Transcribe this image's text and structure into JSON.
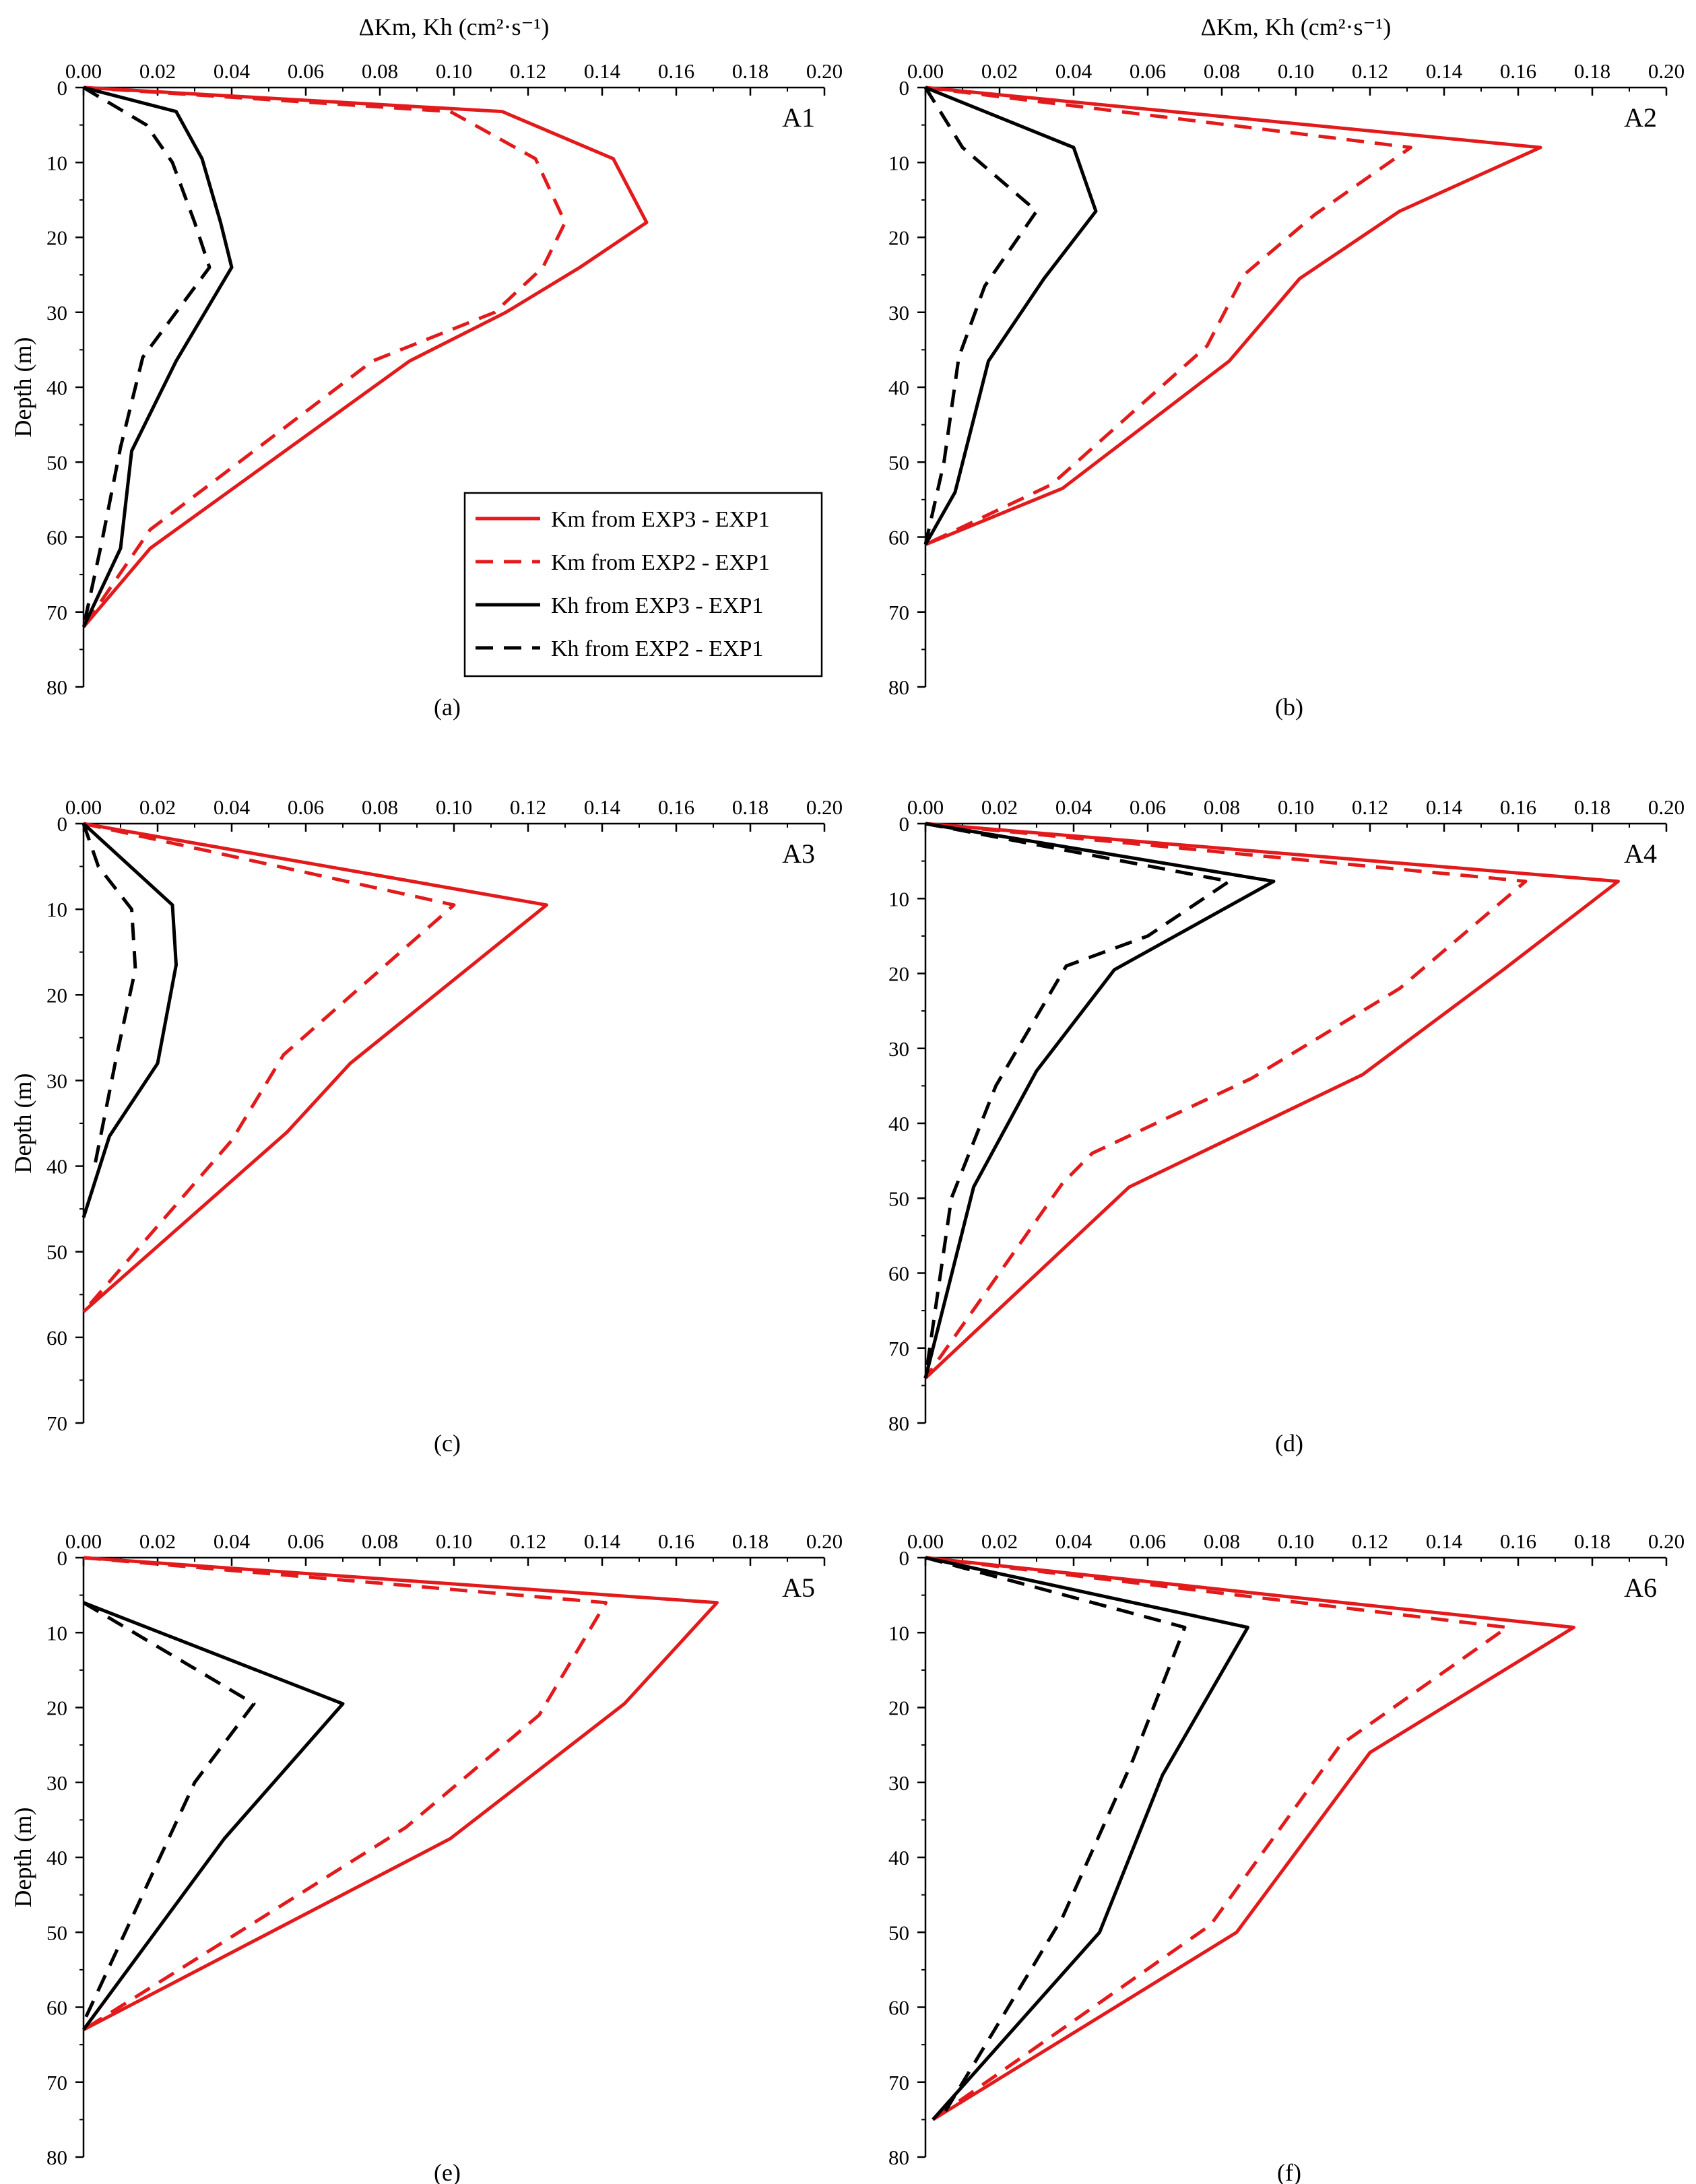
{
  "chart_data": [
    {
      "type": "line",
      "panel": "A1",
      "caption": "(a)",
      "title": "",
      "xlabel": "ΔKm, Kh (cm²·s⁻¹)",
      "ylabel": "Depth (m)",
      "xlim": [
        0,
        0.2
      ],
      "ylim": [
        0,
        80
      ],
      "xticks": [
        "0.00",
        "0.02",
        "0.04",
        "0.06",
        "0.08",
        "0.10",
        "0.12",
        "0.14",
        "0.16",
        "0.18",
        "0.20"
      ],
      "yticks": [
        "0",
        "10",
        "20",
        "30",
        "40",
        "50",
        "60",
        "70",
        "80"
      ],
      "series": [
        {
          "name": "Km from EXP3 - EXP1",
          "color": "#e31a1c",
          "dash": "solid",
          "x": [
            0,
            0.113,
            0.143,
            0.152,
            0.134,
            0.114,
            0.088,
            0.018,
            0
          ],
          "y": [
            0,
            3.2,
            9.5,
            18,
            24,
            30,
            36.5,
            61.5,
            72
          ]
        },
        {
          "name": "Km from EXP2 - EXP1",
          "color": "#e31a1c",
          "dash": "dashed",
          "x": [
            0,
            0.099,
            0.122,
            0.13,
            0.124,
            0.111,
            0.078,
            0.018,
            0
          ],
          "y": [
            0,
            3.2,
            9.5,
            18,
            24,
            30,
            36.5,
            59,
            72
          ]
        },
        {
          "name": "Kh  from EXP3 - EXP1",
          "color": "#000000",
          "dash": "solid",
          "x": [
            0,
            0.025,
            0.032,
            0.037,
            0.04,
            0.025,
            0.013,
            0.01,
            0
          ],
          "y": [
            0,
            3.2,
            9.5,
            18,
            24,
            36.5,
            48.5,
            61.5,
            72
          ]
        },
        {
          "name": "Kh  from EXP2 - EXP1",
          "color": "#000000",
          "dash": "dashed",
          "x": [
            0,
            0.017,
            0.024,
            0.03,
            0.034,
            0.016,
            0.01,
            0.005,
            0
          ],
          "y": [
            0,
            5,
            10,
            18,
            24,
            36,
            48,
            60.5,
            72
          ]
        }
      ]
    },
    {
      "type": "line",
      "panel": "A2",
      "caption": "(b)",
      "title": "",
      "xlabel": "ΔKm, Kh (cm²·s⁻¹)",
      "ylabel": "",
      "xlim": [
        0,
        0.2
      ],
      "ylim": [
        0,
        80
      ],
      "xticks": [
        "0.00",
        "0.02",
        "0.04",
        "0.06",
        "0.08",
        "0.10",
        "0.12",
        "0.14",
        "0.16",
        "0.18",
        "0.20"
      ],
      "yticks": [
        "0",
        "10",
        "20",
        "30",
        "40",
        "50",
        "60",
        "70",
        "80"
      ],
      "series": [
        {
          "name": "Km from EXP3 - EXP1",
          "color": "#e31a1c",
          "dash": "solid",
          "x": [
            0,
            0.166,
            0.128,
            0.101,
            0.082,
            0.037,
            0
          ],
          "y": [
            0,
            8,
            16.5,
            25.5,
            36.5,
            53.5,
            61
          ]
        },
        {
          "name": "Km from EXP2 - EXP1",
          "color": "#e31a1c",
          "dash": "dashed",
          "x": [
            0,
            0.131,
            0.105,
            0.086,
            0.076,
            0.034,
            0
          ],
          "y": [
            0,
            8,
            17,
            25,
            34.5,
            53,
            61
          ]
        },
        {
          "name": "Kh  from EXP3 - EXP1",
          "color": "#000000",
          "dash": "solid",
          "x": [
            0,
            0.04,
            0.046,
            0.032,
            0.017,
            0.008,
            0
          ],
          "y": [
            0,
            8,
            16.5,
            25.5,
            36.5,
            54,
            61
          ]
        },
        {
          "name": "Kh  from EXP2 - EXP1",
          "color": "#000000",
          "dash": "dashed",
          "x": [
            0,
            0.01,
            0.03,
            0.016,
            0.009,
            0.005,
            0
          ],
          "y": [
            0,
            8,
            16.5,
            26.5,
            36,
            50,
            61
          ]
        }
      ]
    },
    {
      "type": "line",
      "panel": "A3",
      "caption": "(c)",
      "title": "",
      "xlabel": "",
      "ylabel": "Depth (m)",
      "xlim": [
        0,
        0.2
      ],
      "ylim": [
        0,
        70
      ],
      "xticks": [
        "0.00",
        "0.02",
        "0.04",
        "0.06",
        "0.08",
        "0.10",
        "0.12",
        "0.14",
        "0.16",
        "0.18",
        "0.20"
      ],
      "yticks": [
        "0",
        "10",
        "20",
        "30",
        "40",
        "50",
        "60",
        "70"
      ],
      "series": [
        {
          "name": "Km from EXP3 - EXP1",
          "color": "#e31a1c",
          "dash": "solid",
          "x": [
            0,
            0.125,
            0.072,
            0.055,
            0
          ],
          "y": [
            0,
            9.5,
            28,
            36,
            57
          ]
        },
        {
          "name": "Km from EXP2 - EXP1",
          "color": "#e31a1c",
          "dash": "dashed",
          "x": [
            0,
            0.1,
            0.054,
            0.04,
            0
          ],
          "y": [
            0,
            9.5,
            27,
            37,
            57
          ]
        },
        {
          "name": "Kh  from EXP3 - EXP1",
          "color": "#000000",
          "dash": "solid",
          "x": [
            0,
            0.024,
            0.025,
            0.02,
            0.007,
            0
          ],
          "y": [
            0,
            9.5,
            16.5,
            28,
            36.5,
            46
          ]
        },
        {
          "name": "Kh  from EXP2 - EXP1",
          "color": "#000000",
          "dash": "dashed",
          "x": [
            0,
            0.004,
            0.013,
            0.014,
            0.009,
            0.003
          ],
          "y": [
            0,
            5,
            10,
            17,
            27,
            40
          ]
        }
      ]
    },
    {
      "type": "line",
      "panel": "A4",
      "caption": "(d)",
      "title": "",
      "xlabel": "",
      "ylabel": "",
      "xlim": [
        0,
        0.2
      ],
      "ylim": [
        0,
        80
      ],
      "xticks": [
        "0.00",
        "0.02",
        "0.04",
        "0.06",
        "0.08",
        "0.10",
        "0.12",
        "0.14",
        "0.16",
        "0.18",
        "0.20"
      ],
      "yticks": [
        "0",
        "10",
        "20",
        "30",
        "40",
        "50",
        "60",
        "70",
        "80"
      ],
      "series": [
        {
          "name": "Km from EXP3 - EXP1",
          "color": "#e31a1c",
          "dash": "solid",
          "x": [
            0,
            0.187,
            0.156,
            0.118,
            0.055,
            0
          ],
          "y": [
            0,
            7.7,
            19.5,
            33.5,
            48.5,
            74
          ]
        },
        {
          "name": "Km from EXP2 - EXP1",
          "color": "#e31a1c",
          "dash": "dashed",
          "x": [
            0,
            0.162,
            0.128,
            0.088,
            0.045,
            0.037,
            0
          ],
          "y": [
            0,
            7.7,
            22,
            34,
            44,
            48,
            74
          ]
        },
        {
          "name": "Kh  from EXP3 - EXP1",
          "color": "#000000",
          "dash": "solid",
          "x": [
            0,
            0.094,
            0.051,
            0.03,
            0.013,
            0
          ],
          "y": [
            0,
            7.7,
            19.5,
            33,
            48.5,
            74
          ]
        },
        {
          "name": "Kh  from EXP2 - EXP1",
          "color": "#000000",
          "dash": "dashed",
          "x": [
            0,
            0.082,
            0.06,
            0.038,
            0.019,
            0.007,
            0
          ],
          "y": [
            0,
            7.7,
            15,
            19,
            35,
            50,
            74
          ]
        }
      ]
    },
    {
      "type": "line",
      "panel": "A5",
      "caption": "(e)",
      "title": "",
      "xlabel": "",
      "ylabel": "Depth (m)",
      "xlim": [
        0,
        0.2
      ],
      "ylim": [
        0,
        80
      ],
      "xticks": [
        "0.00",
        "0.02",
        "0.04",
        "0.06",
        "0.08",
        "0.10",
        "0.12",
        "0.14",
        "0.16",
        "0.18",
        "0.20"
      ],
      "yticks": [
        "0",
        "10",
        "20",
        "30",
        "40",
        "50",
        "60",
        "70",
        "80"
      ],
      "series": [
        {
          "name": "Km from EXP3 - EXP1",
          "color": "#e31a1c",
          "dash": "solid",
          "x": [
            0,
            0.171,
            0.146,
            0.099,
            0
          ],
          "y": [
            0,
            6,
            19.5,
            37.5,
            63
          ]
        },
        {
          "name": "Km from EXP2 - EXP1",
          "color": "#e31a1c",
          "dash": "dashed",
          "x": [
            0,
            0.141,
            0.123,
            0.087,
            0
          ],
          "y": [
            0,
            6,
            21,
            36,
            63
          ]
        },
        {
          "name": "Kh  from EXP3 - EXP1",
          "color": "#000000",
          "dash": "solid",
          "x": [
            0,
            0.07,
            0.038,
            0
          ],
          "y": [
            6,
            19.5,
            37.5,
            63
          ]
        },
        {
          "name": "Kh  from EXP2 - EXP1",
          "color": "#000000",
          "dash": "dashed",
          "x": [
            0,
            0.046,
            0.03,
            0
          ],
          "y": [
            6,
            19.5,
            30,
            62
          ]
        }
      ]
    },
    {
      "type": "line",
      "panel": "A6",
      "caption": "(f)",
      "title": "",
      "xlabel": "",
      "ylabel": "",
      "xlim": [
        0,
        0.2
      ],
      "ylim": [
        0,
        80
      ],
      "xticks": [
        "0.00",
        "0.02",
        "0.04",
        "0.06",
        "0.08",
        "0.10",
        "0.12",
        "0.14",
        "0.16",
        "0.18",
        "0.20"
      ],
      "yticks": [
        "0",
        "10",
        "20",
        "30",
        "40",
        "50",
        "60",
        "70",
        "80"
      ],
      "series": [
        {
          "name": "Km from EXP3 - EXP1",
          "color": "#e31a1c",
          "dash": "solid",
          "x": [
            0,
            0.175,
            0.12,
            0.084,
            0.002
          ],
          "y": [
            0,
            9.3,
            26,
            50,
            75
          ]
        },
        {
          "name": "Km from EXP2 - EXP1",
          "color": "#e31a1c",
          "dash": "dashed",
          "x": [
            0,
            0.157,
            0.112,
            0.077,
            0.002
          ],
          "y": [
            0,
            9.3,
            25,
            49,
            75
          ]
        },
        {
          "name": "Kh  from EXP3 - EXP1",
          "color": "#000000",
          "dash": "solid",
          "x": [
            0,
            0.087,
            0.064,
            0.047,
            0.002
          ],
          "y": [
            0,
            9.3,
            29,
            50,
            75
          ]
        },
        {
          "name": "Kh  from EXP2 - EXP1",
          "color": "#000000",
          "dash": "dashed",
          "x": [
            0,
            0.07,
            0.056,
            0.037,
            0.004
          ],
          "y": [
            0,
            9.3,
            27,
            48,
            75
          ]
        }
      ]
    }
  ],
  "legend": {
    "placement": "lower-right of panel A1",
    "entries": [
      "Km from EXP3 - EXP1",
      "Km from EXP2 - EXP1",
      "Kh  from EXP3 - EXP1",
      "Kh  from EXP2 - EXP1"
    ]
  }
}
